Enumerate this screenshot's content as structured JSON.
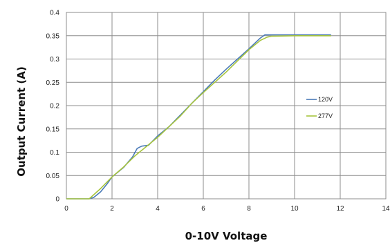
{
  "chart_data": {
    "type": "line",
    "xlabel": "0-10V Voltage",
    "ylabel": "Output Current (A)",
    "xlim": [
      0,
      14
    ],
    "ylim": [
      0,
      0.4
    ],
    "x_ticks": [
      "0",
      "2",
      "4",
      "6",
      "8",
      "10",
      "12",
      "14"
    ],
    "y_ticks": [
      "0",
      "0.05",
      "0.1",
      "0.15",
      "0.2",
      "0.25",
      "0.3",
      "0.35",
      "0.4"
    ],
    "grid": true,
    "legend_position": "right",
    "series": [
      {
        "name": "120V",
        "color": "#4a7ab8",
        "x": [
          0,
          1.0,
          1.2,
          1.5,
          1.8,
          2.0,
          2.5,
          2.9,
          3.1,
          3.3,
          3.6,
          4.0,
          4.5,
          5.0,
          5.5,
          6.0,
          6.5,
          7.0,
          7.5,
          8.0,
          8.5,
          8.7,
          9.0,
          10.0,
          11.0,
          11.6
        ],
        "y": [
          0,
          0,
          0.003,
          0.015,
          0.033,
          0.047,
          0.067,
          0.09,
          0.108,
          0.113,
          0.115,
          0.135,
          0.155,
          0.18,
          0.205,
          0.23,
          0.255,
          0.278,
          0.3,
          0.322,
          0.345,
          0.352,
          0.352,
          0.352,
          0.352,
          0.352
        ]
      },
      {
        "name": "277V",
        "color": "#a7c43d",
        "x": [
          0,
          1.0,
          1.5,
          2.0,
          2.5,
          3.0,
          3.5,
          4.0,
          4.5,
          5.0,
          5.5,
          6.0,
          6.5,
          7.0,
          7.5,
          8.0,
          8.5,
          8.8,
          9.0,
          10.0,
          11.0,
          11.6
        ],
        "y": [
          0,
          0,
          0.022,
          0.047,
          0.068,
          0.092,
          0.112,
          0.132,
          0.155,
          0.178,
          0.205,
          0.228,
          0.25,
          0.272,
          0.296,
          0.32,
          0.34,
          0.347,
          0.349,
          0.35,
          0.35,
          0.35
        ]
      }
    ]
  }
}
